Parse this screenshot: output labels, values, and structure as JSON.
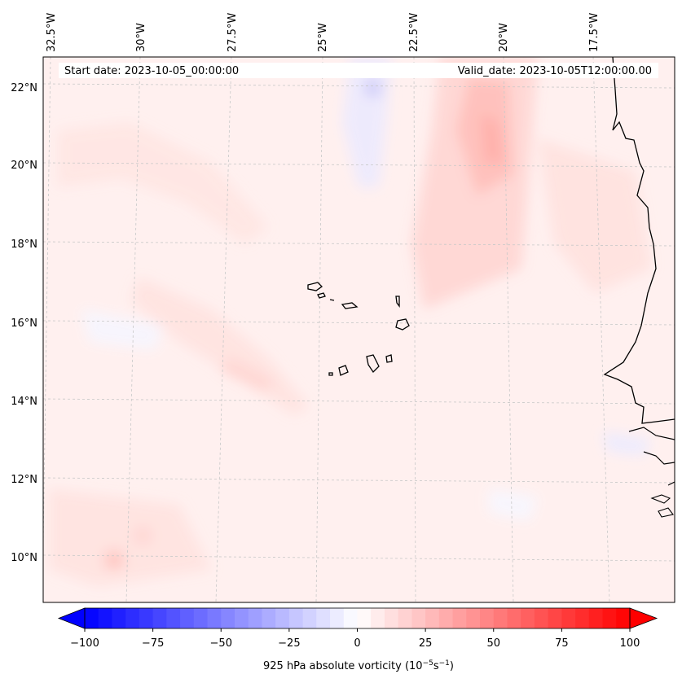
{
  "header": {
    "start_date": "Start date: 2023-10-05_00:00:00",
    "valid_date": "Valid_date: 2023-10-05T12:00:00.00"
  },
  "longitude_labels": [
    "32.5°W",
    "30°W",
    "27.5°W",
    "25°W",
    "22.5°W",
    "20°W",
    "17.5°W"
  ],
  "latitude_labels": [
    "22°N",
    "20°N",
    "18°N",
    "16°N",
    "14°N",
    "12°N",
    "10°N"
  ],
  "colorbar": {
    "label_prefix": "925 hPa absolute vorticity (10",
    "label_exp1": "−5",
    "label_mid": "s",
    "label_exp2": "−1",
    "label_suffix": ")",
    "ticks": [
      "−100",
      "−75",
      "−50",
      "−25",
      "0",
      "25",
      "50",
      "75",
      "100"
    ],
    "min": -100,
    "max": 100,
    "levels": 41,
    "neg_color": "#0000ff",
    "mid_color": "#ffffff",
    "pos_color": "#ff0000"
  },
  "colors": {
    "coastline": "#000000",
    "grid": "#c8c8c8"
  }
}
